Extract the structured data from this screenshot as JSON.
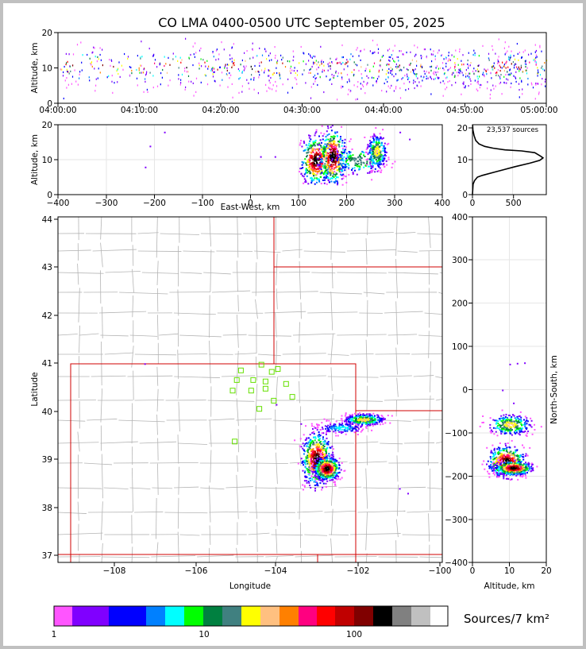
{
  "chart_data": [
    {
      "type": "scatter",
      "name": "altitude-time",
      "title": "CO LMA 0400-0500 UTC September 05, 2025",
      "ylabel": "Altitude, km",
      "ylim": [
        0,
        20
      ],
      "yticks": [
        "0",
        "10",
        "20"
      ],
      "xticks": [
        "04:00:00",
        "04:10:00",
        "04:20:00",
        "04:30:00",
        "04:40:00",
        "04:50:00",
        "05:00:00"
      ],
      "xlim_minutes": [
        0,
        60
      ],
      "activity_profile_minutes": [
        [
          0,
          0.4
        ],
        [
          5,
          0.55
        ],
        [
          10,
          0.5
        ],
        [
          15,
          0.45
        ],
        [
          20,
          0.55
        ],
        [
          25,
          0.6
        ],
        [
          30,
          0.55
        ],
        [
          35,
          0.75
        ],
        [
          40,
          0.9
        ],
        [
          45,
          1.0
        ],
        [
          50,
          1.0
        ],
        [
          55,
          0.95
        ],
        [
          60,
          0.85
        ]
      ]
    },
    {
      "type": "heatmap",
      "name": "altitude-eastwest",
      "xlabel": "East-West, km",
      "ylabel": "Altitude, km",
      "xlim": [
        -400,
        400
      ],
      "ylim": [
        0,
        20
      ],
      "xticks": [
        "−400",
        "−300",
        "−200",
        "−100",
        "0",
        "100",
        "200",
        "300",
        "400"
      ],
      "yticks": [
        "0",
        "10",
        "20"
      ],
      "clusters": [
        {
          "x": 135,
          "z": 10,
          "sx": 16,
          "sz": 3.5,
          "w": 1.0
        },
        {
          "x": 170,
          "z": 11,
          "sx": 14,
          "sz": 4,
          "w": 1.0
        },
        {
          "x": 225,
          "z": 10,
          "sx": 30,
          "sz": 2,
          "w": 0.5
        },
        {
          "x": 262,
          "z": 12.5,
          "sx": 10,
          "sz": 2.5,
          "w": 0.6
        }
      ]
    },
    {
      "type": "line",
      "name": "source-altitude-histogram",
      "annotation": "23,537 sources",
      "xlim": [
        0,
        900
      ],
      "ylim": [
        0,
        20
      ],
      "xticks": [
        "0",
        "500"
      ],
      "yticks": [
        "0",
        "10",
        "20"
      ],
      "points": [
        [
          0,
          0
        ],
        [
          8,
          3
        ],
        [
          25,
          4
        ],
        [
          60,
          5
        ],
        [
          120,
          5.5
        ],
        [
          280,
          6.5
        ],
        [
          520,
          8
        ],
        [
          700,
          9
        ],
        [
          820,
          9.8
        ],
        [
          860,
          10.5
        ],
        [
          830,
          11
        ],
        [
          760,
          12
        ],
        [
          600,
          12.5
        ],
        [
          400,
          12.8
        ],
        [
          250,
          13.3
        ],
        [
          150,
          13.8
        ],
        [
          80,
          14.5
        ],
        [
          40,
          15.5
        ],
        [
          18,
          17
        ],
        [
          6,
          18.5
        ],
        [
          2,
          20
        ]
      ]
    },
    {
      "type": "heatmap",
      "name": "plan-view-map",
      "xlabel": "Longitude",
      "ylabel": "Latitude",
      "xlim": [
        -109.3,
        -99.95
      ],
      "ylim": [
        36.85,
        44.05
      ],
      "xticks": [
        "−108",
        "−106",
        "−104",
        "−102",
        "−100"
      ],
      "yticks": [
        "37",
        "38",
        "39",
        "40",
        "41",
        "42",
        "43",
        "44"
      ],
      "stations": [
        [
          -104.85,
          40.85
        ],
        [
          -104.35,
          40.97
        ],
        [
          -103.95,
          40.88
        ],
        [
          -104.95,
          40.65
        ],
        [
          -104.55,
          40.65
        ],
        [
          -104.25,
          40.62
        ],
        [
          -103.75,
          40.57
        ],
        [
          -105.05,
          40.43
        ],
        [
          -104.6,
          40.43
        ],
        [
          -104.25,
          40.47
        ],
        [
          -103.6,
          40.3
        ],
        [
          -104.05,
          40.22
        ],
        [
          -104.4,
          40.05
        ],
        [
          -105.0,
          39.37
        ],
        [
          -104.1,
          40.82
        ]
      ],
      "clusters": [
        {
          "lon": -103.0,
          "lat": 39.0,
          "sx": 0.18,
          "sy": 0.28,
          "w": 1.0
        },
        {
          "lon": -102.75,
          "lat": 38.8,
          "sx": 0.16,
          "sy": 0.12,
          "w": 1.0
        },
        {
          "lon": -101.85,
          "lat": 39.82,
          "sx": 0.25,
          "sy": 0.06,
          "w": 0.6
        },
        {
          "lon": -102.4,
          "lat": 39.65,
          "sx": 0.3,
          "sy": 0.06,
          "w": 0.3
        }
      ]
    },
    {
      "type": "heatmap",
      "name": "northsouth-altitude",
      "xlabel": "Altitude, km",
      "ylabel": "North-South, km",
      "xlim": [
        0,
        20
      ],
      "ylim": [
        -400,
        400
      ],
      "xticks": [
        "0",
        "10",
        "20"
      ],
      "yticks": [
        "−400",
        "−300",
        "−200",
        "−100",
        "0",
        "100",
        "200",
        "300",
        "400"
      ],
      "clusters": [
        {
          "z": 9,
          "y": -165,
          "sx": 2.5,
          "sy": 18,
          "w": 1.0
        },
        {
          "z": 11,
          "y": -180,
          "sx": 2.5,
          "sy": 8,
          "w": 1.0
        },
        {
          "z": 10,
          "y": -80,
          "sx": 3,
          "sy": 12,
          "w": 0.6
        }
      ]
    },
    {
      "type": "colorbar",
      "name": "density-colorbar",
      "label": "Sources/7 km²",
      "ticks": [
        "1",
        "10",
        "100"
      ],
      "colors": [
        "#ff55ff",
        "#8000ff",
        "#0000ff",
        "#0080ff",
        "#00ffff",
        "#00ff00",
        "#008040",
        "#408080",
        "#ffff00",
        "#ffc080",
        "#ff8000",
        "#ff0080",
        "#ff0000",
        "#c00000",
        "#800000",
        "#000000",
        "#808080",
        "#c0c0c0",
        "#ffffff"
      ]
    }
  ]
}
